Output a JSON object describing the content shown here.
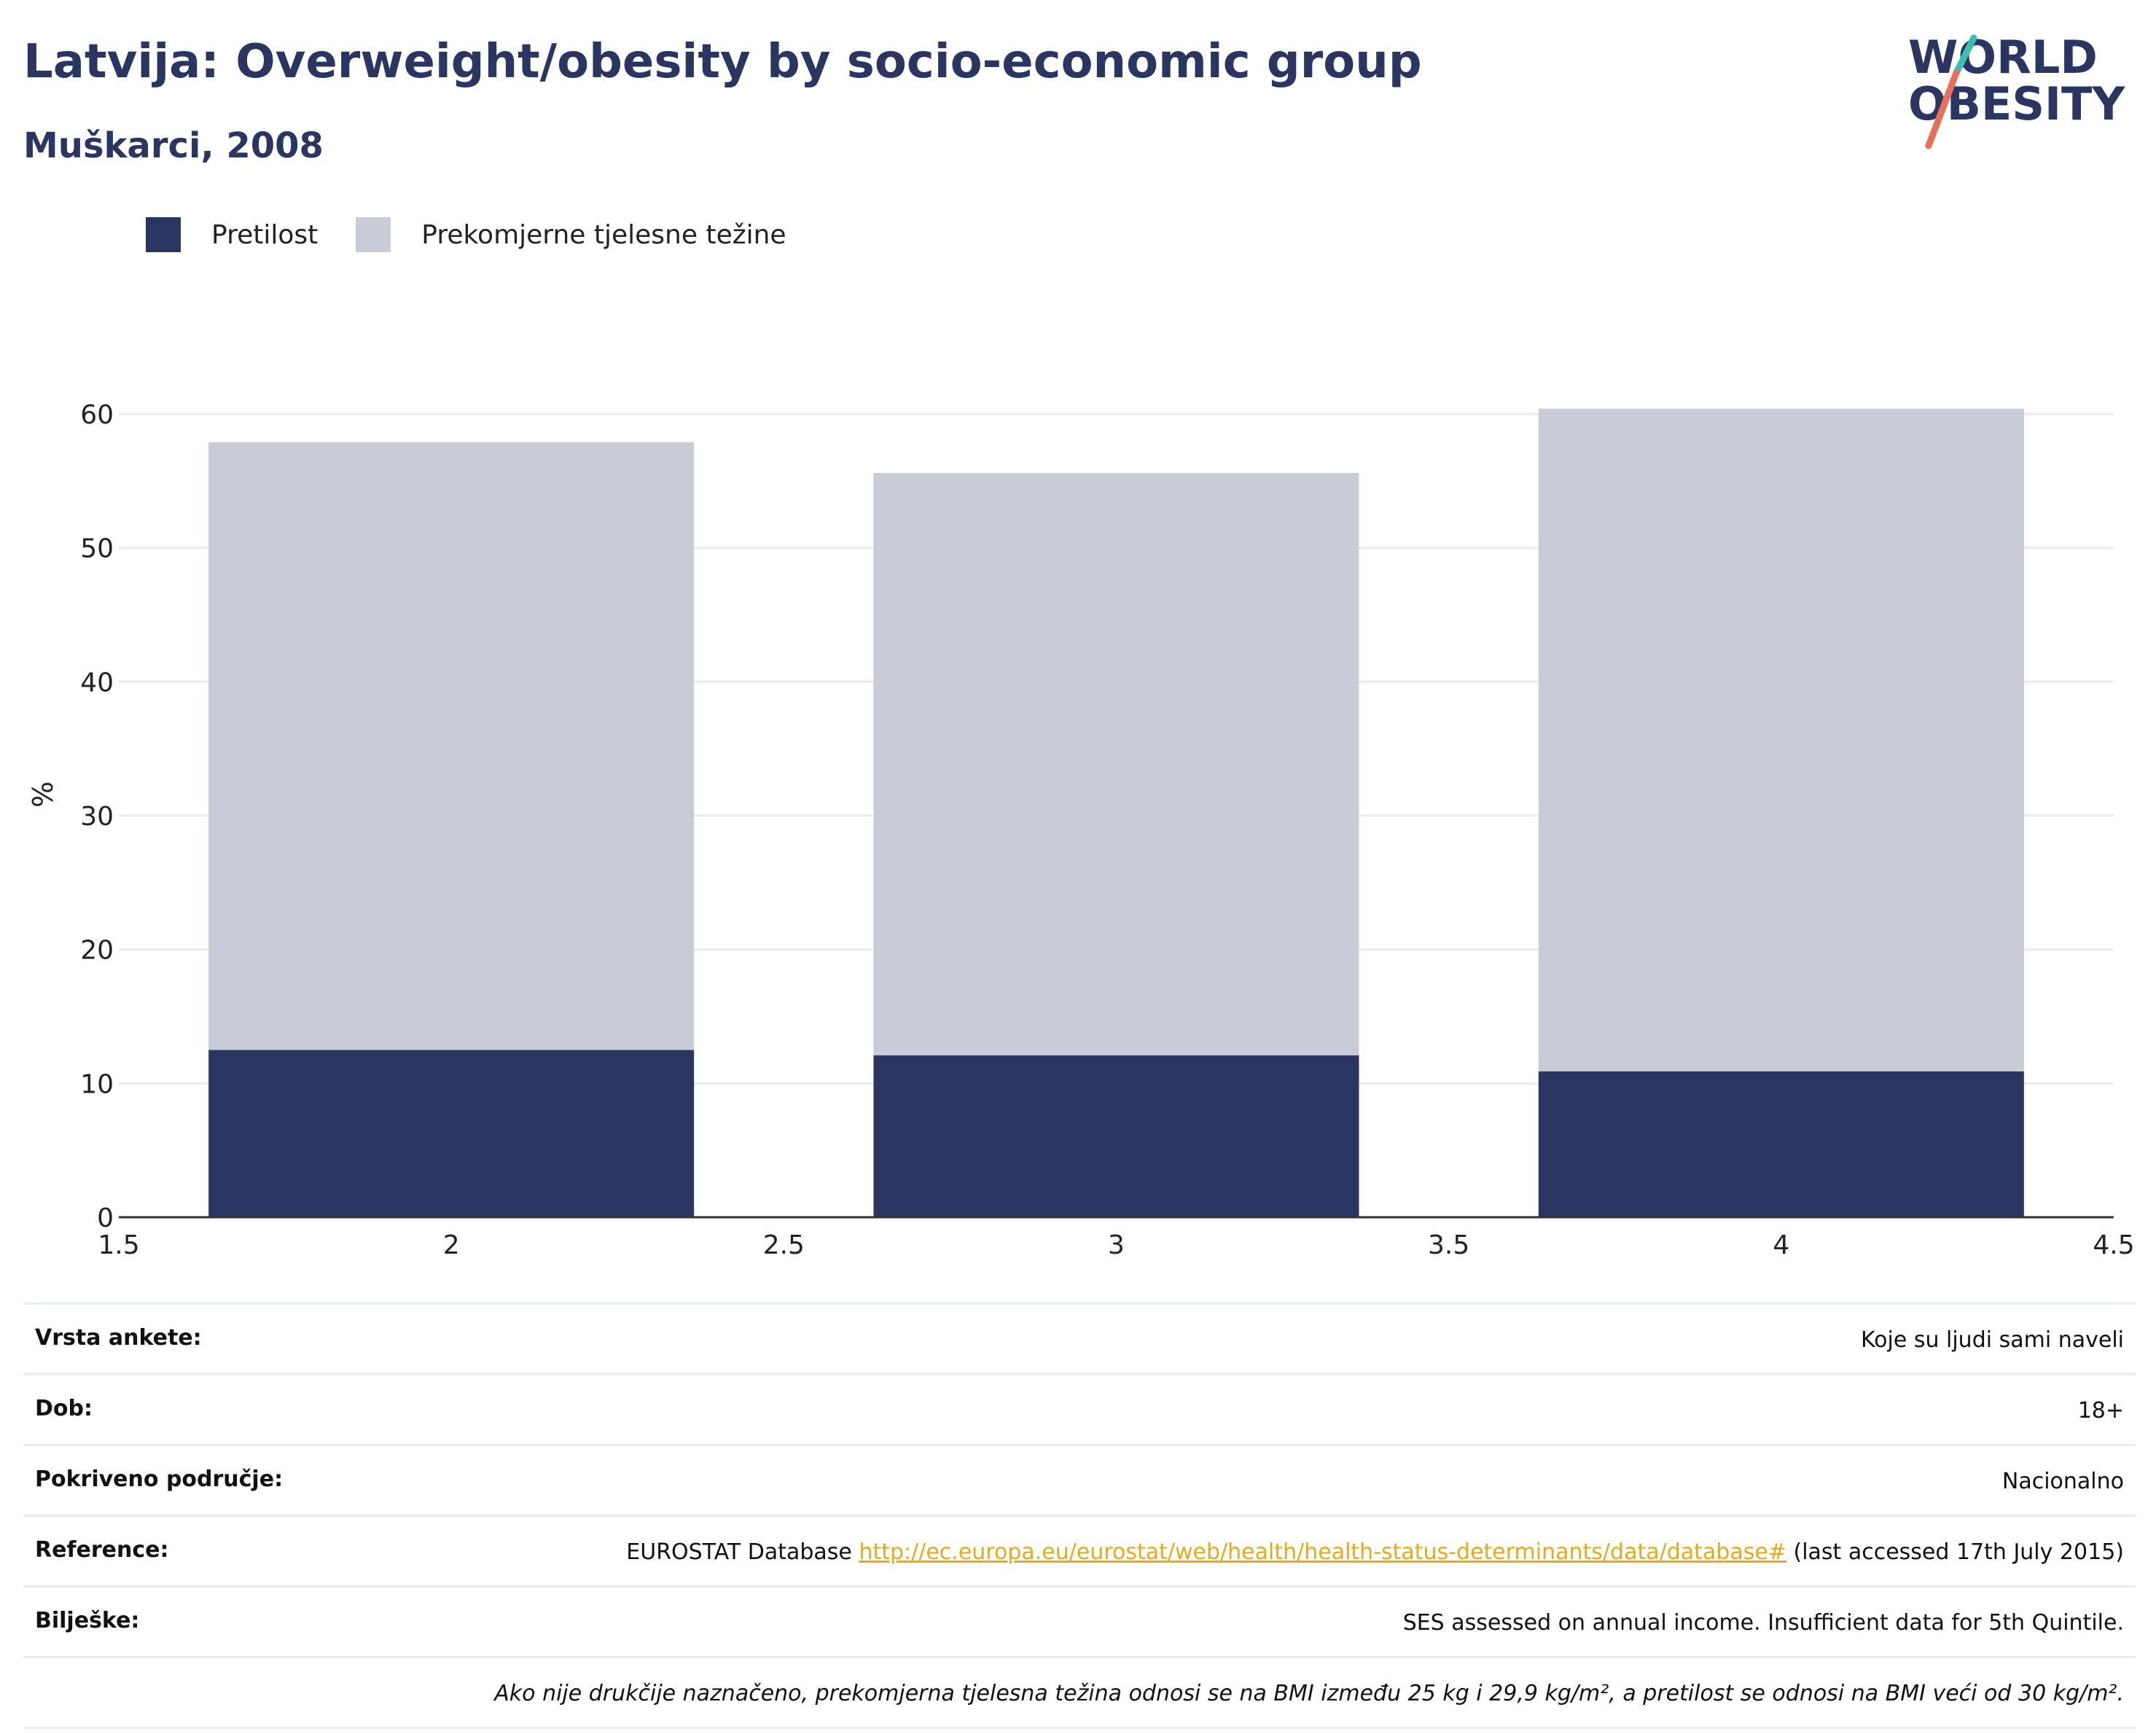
{
  "header": {
    "title": "Latvija: Overweight/obesity by socio-economic group",
    "subtitle": "Muškarci, 2008",
    "logo_line1": "WORLD",
    "logo_line2": "OBESITY"
  },
  "legend": [
    {
      "label": "Pretilost",
      "color": "#2b3561"
    },
    {
      "label": "Prekomjerne tjelesne težine",
      "color": "#c9ccd6"
    }
  ],
  "chart_data": {
    "type": "bar",
    "stacked": true,
    "x": [
      2,
      3,
      4
    ],
    "series": [
      {
        "name": "Pretilost",
        "values": [
          12.5,
          12.1,
          10.9
        ],
        "color": "#2b3561"
      },
      {
        "name": "Prekomjerne tjelesne težine",
        "values": [
          45.4,
          43.5,
          49.5
        ],
        "color": "#c9ccd6"
      }
    ],
    "totals": [
      57.9,
      55.6,
      60.4
    ],
    "xlim": [
      1.5,
      4.5
    ],
    "ylim": [
      0,
      60
    ],
    "x_ticks": [
      "1.5",
      "2",
      "2.5",
      "3",
      "3.5",
      "4",
      "4.5"
    ],
    "y_ticks": [
      "0",
      "10",
      "20",
      "30",
      "40",
      "50",
      "60"
    ],
    "ylabel": "%",
    "xlabel": "",
    "grid": true,
    "legend_position": "top-left"
  },
  "info": {
    "survey_type": {
      "label": "Vrsta ankete:",
      "value": "Koje su ljudi sami naveli"
    },
    "age": {
      "label": "Dob:",
      "value": "18+"
    },
    "coverage": {
      "label": "Pokriveno područje:",
      "value": "Nacionalno"
    },
    "reference": {
      "label": "Reference:",
      "prefix": "EUROSTAT Database",
      "link": "http://ec.europa.eu/eurostat/web/health/health-status-determinants/data/database#",
      "suffix": "(last accessed 17th July 2015)"
    },
    "notes": {
      "label": "Bilješke:",
      "value": "SES assessed on annual income. Insufficient data for 5th Quintile."
    },
    "definition": "Ako nije drukčije naznačeno, prekomjerna tjelesna težina odnosi se na BMI između 25 kg i 29,9 kg/m², a pretilost se odnosi na BMI veći od 30 kg/m²."
  }
}
